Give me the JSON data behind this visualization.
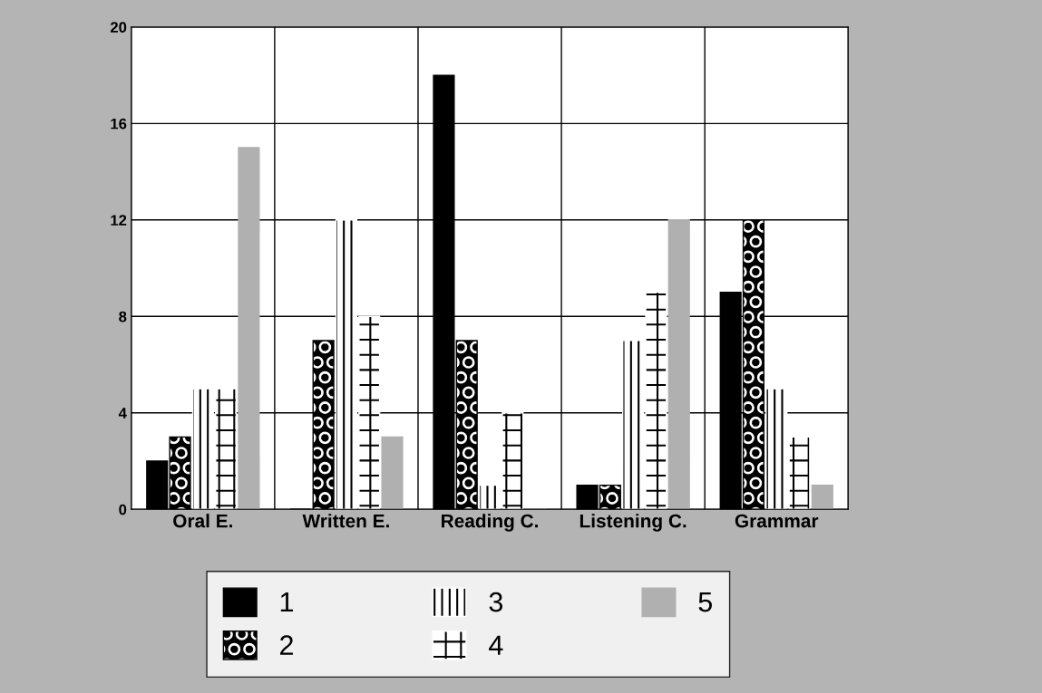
{
  "chart_data": {
    "type": "bar",
    "categories": [
      "Oral E.",
      "Written E.",
      "Reading C.",
      "Listening C.",
      "Grammar"
    ],
    "series": [
      {
        "name": "1",
        "color": "#000000",
        "values": [
          2,
          0,
          18,
          1,
          9
        ]
      },
      {
        "name": "2",
        "color": "#000000",
        "values": [
          3,
          7,
          7,
          1,
          12
        ]
      },
      {
        "name": "3",
        "color": "#ffffff",
        "values": [
          5,
          12,
          1,
          7,
          5
        ]
      },
      {
        "name": "4",
        "color": "#ffffff",
        "values": [
          5,
          8,
          4,
          9,
          3
        ]
      },
      {
        "name": "5",
        "color": "#b0b0b0",
        "values": [
          15,
          3,
          0,
          12,
          1
        ]
      }
    ],
    "ylim": [
      0,
      20
    ],
    "yticks": [
      0,
      4,
      8,
      12,
      16,
      20
    ],
    "grid": true,
    "legend": "bottom"
  }
}
